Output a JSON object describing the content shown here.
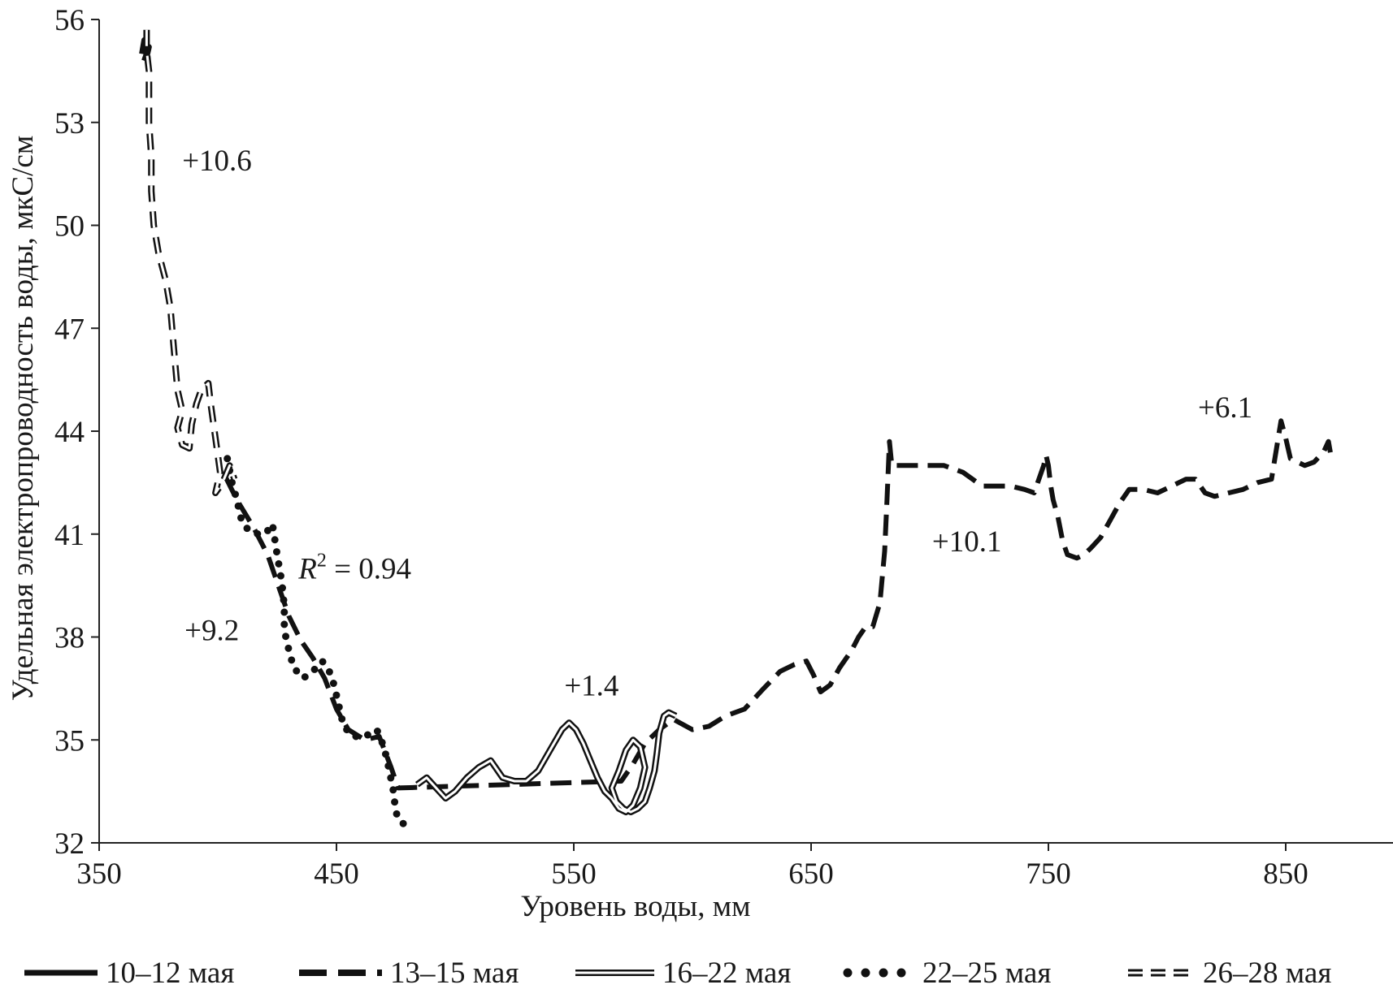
{
  "chart_data": {
    "type": "line",
    "title": "",
    "xlabel": "Уровень воды, мм",
    "ylabel": "Удельная электропроводность воды, мкС/см",
    "xlim": [
      350,
      890
    ],
    "ylim": [
      32,
      56
    ],
    "xticks": [
      350,
      450,
      550,
      650,
      750,
      850
    ],
    "yticks": [
      32,
      35,
      38,
      41,
      44,
      47,
      50,
      53,
      56
    ],
    "grid": false,
    "legend_position": "bottom",
    "series": [
      {
        "name": "10–12 мая",
        "style": "solid-thick",
        "points": [
          [
            368,
            55.0
          ],
          [
            369,
            55.4
          ],
          [
            370,
            54.9
          ],
          [
            371,
            55.2
          ],
          [
            369,
            54.8
          ]
        ]
      },
      {
        "name": "13–15 мая",
        "style": "dashed",
        "points": [
          [
            403,
            42.7
          ],
          [
            408,
            42.0
          ],
          [
            415,
            41.2
          ],
          [
            421,
            40.4
          ],
          [
            426,
            39.4
          ],
          [
            430,
            38.6
          ],
          [
            435,
            37.9
          ],
          [
            440,
            37.4
          ],
          [
            445,
            36.8
          ],
          [
            450,
            35.9
          ],
          [
            455,
            35.3
          ],
          [
            462,
            35.0
          ],
          [
            468,
            35.1
          ],
          [
            473,
            34.2
          ],
          [
            476,
            33.6
          ],
          [
            570,
            33.8
          ],
          [
            575,
            34.3
          ],
          [
            580,
            34.9
          ],
          [
            586,
            35.3
          ],
          [
            592,
            35.6
          ],
          [
            600,
            35.3
          ],
          [
            607,
            35.4
          ],
          [
            614,
            35.7
          ],
          [
            622,
            35.9
          ],
          [
            630,
            36.5
          ],
          [
            637,
            37.0
          ],
          [
            643,
            37.2
          ],
          [
            648,
            37.3
          ],
          [
            651,
            36.9
          ],
          [
            654,
            36.4
          ],
          [
            658,
            36.6
          ],
          [
            662,
            37.1
          ],
          [
            667,
            37.6
          ],
          [
            670,
            38.0
          ],
          [
            673,
            38.3
          ],
          [
            676,
            38.3
          ],
          [
            679,
            39.0
          ],
          [
            681,
            40.5
          ],
          [
            682,
            42.0
          ],
          [
            683,
            43.7
          ],
          [
            684,
            43.0
          ],
          [
            696,
            43.0
          ],
          [
            706,
            43.0
          ],
          [
            714,
            42.8
          ],
          [
            718,
            42.6
          ],
          [
            722,
            42.4
          ],
          [
            728,
            42.4
          ],
          [
            734,
            42.4
          ],
          [
            740,
            42.3
          ],
          [
            744,
            42.2
          ],
          [
            746,
            42.6
          ],
          [
            748,
            43.0
          ],
          [
            749,
            43.3
          ],
          [
            750,
            43.0
          ],
          [
            751,
            42.4
          ],
          [
            752,
            42.0
          ],
          [
            754,
            41.5
          ],
          [
            756,
            40.8
          ],
          [
            758,
            40.4
          ],
          [
            762,
            40.3
          ],
          [
            765,
            40.4
          ],
          [
            768,
            40.6
          ],
          [
            772,
            40.9
          ],
          [
            776,
            41.4
          ],
          [
            780,
            41.9
          ],
          [
            784,
            42.3
          ],
          [
            790,
            42.3
          ],
          [
            796,
            42.2
          ],
          [
            802,
            42.4
          ],
          [
            808,
            42.6
          ],
          [
            812,
            42.6
          ],
          [
            816,
            42.2
          ],
          [
            820,
            42.1
          ],
          [
            826,
            42.2
          ],
          [
            832,
            42.3
          ],
          [
            838,
            42.5
          ],
          [
            844,
            42.6
          ],
          [
            848,
            44.3
          ],
          [
            850,
            43.8
          ],
          [
            852,
            43.2
          ],
          [
            858,
            43.0
          ],
          [
            862,
            43.1
          ],
          [
            866,
            43.4
          ],
          [
            868,
            43.7
          ],
          [
            869,
            43.3
          ]
        ]
      },
      {
        "name": "16–22 мая",
        "style": "double-line",
        "points": [
          [
            484,
            33.7
          ],
          [
            488,
            33.9
          ],
          [
            492,
            33.6
          ],
          [
            496,
            33.3
          ],
          [
            500,
            33.5
          ],
          [
            505,
            33.9
          ],
          [
            510,
            34.2
          ],
          [
            515,
            34.4
          ],
          [
            520,
            33.9
          ],
          [
            525,
            33.8
          ],
          [
            530,
            33.8
          ],
          [
            535,
            34.1
          ],
          [
            540,
            34.7
          ],
          [
            545,
            35.3
          ],
          [
            548,
            35.5
          ],
          [
            551,
            35.3
          ],
          [
            554,
            34.9
          ],
          [
            557,
            34.4
          ],
          [
            560,
            33.9
          ],
          [
            563,
            33.5
          ],
          [
            566,
            33.3
          ],
          [
            569,
            33.0
          ],
          [
            572,
            32.9
          ],
          [
            575,
            33.1
          ],
          [
            578,
            33.6
          ],
          [
            580,
            34.2
          ],
          [
            578,
            34.8
          ],
          [
            575,
            35.0
          ],
          [
            572,
            34.7
          ],
          [
            569,
            34.1
          ],
          [
            566,
            33.6
          ],
          [
            568,
            33.2
          ],
          [
            571,
            33.0
          ],
          [
            574,
            32.9
          ],
          [
            577,
            33.0
          ],
          [
            580,
            33.2
          ],
          [
            582,
            33.6
          ],
          [
            584,
            34.1
          ],
          [
            585,
            34.6
          ],
          [
            586,
            35.2
          ],
          [
            588,
            35.7
          ],
          [
            590,
            35.8
          ],
          [
            593,
            35.7
          ]
        ]
      },
      {
        "name": "22–25 мая",
        "style": "dotted",
        "points": [
          [
            404,
            43.2
          ],
          [
            406,
            42.5
          ],
          [
            408,
            42.0
          ],
          [
            410,
            41.4
          ],
          [
            413,
            41.1
          ],
          [
            417,
            41.0
          ],
          [
            420,
            41.0
          ],
          [
            423,
            41.3
          ],
          [
            425,
            40.4
          ],
          [
            427,
            39.6
          ],
          [
            428,
            38.9
          ],
          [
            428,
            38.2
          ],
          [
            430,
            37.6
          ],
          [
            432,
            37.1
          ],
          [
            436,
            36.8
          ],
          [
            440,
            37.0
          ],
          [
            444,
            37.3
          ],
          [
            447,
            37.0
          ],
          [
            449,
            36.6
          ],
          [
            451,
            36.0
          ],
          [
            453,
            35.4
          ],
          [
            457,
            35.1
          ],
          [
            462,
            35.1
          ],
          [
            467,
            35.3
          ],
          [
            470,
            34.8
          ],
          [
            472,
            34.2
          ],
          [
            474,
            33.5
          ],
          [
            475,
            32.9
          ],
          [
            477,
            32.6
          ],
          [
            480,
            32.5
          ],
          [
            483,
            32.5
          ]
        ]
      },
      {
        "name": "26–28 мая",
        "style": "dash-double",
        "points": [
          [
            370,
            55.7
          ],
          [
            370,
            55.1
          ],
          [
            371,
            54.5
          ],
          [
            371,
            53.8
          ],
          [
            371,
            53.0
          ],
          [
            372,
            52.0
          ],
          [
            372,
            51.0
          ],
          [
            373,
            50.0
          ],
          [
            375,
            49.2
          ],
          [
            378,
            48.4
          ],
          [
            380,
            47.6
          ],
          [
            381,
            46.8
          ],
          [
            382,
            46.0
          ],
          [
            383,
            45.2
          ],
          [
            385,
            44.6
          ],
          [
            383,
            44.1
          ],
          [
            385,
            43.6
          ],
          [
            388,
            43.5
          ],
          [
            389,
            44.2
          ],
          [
            391,
            44.8
          ],
          [
            393,
            45.2
          ],
          [
            396,
            45.4
          ],
          [
            397,
            44.8
          ],
          [
            399,
            43.8
          ],
          [
            401,
            42.8
          ],
          [
            399,
            42.2
          ],
          [
            402,
            42.5
          ],
          [
            405,
            43.0
          ],
          [
            407,
            42.6
          ]
        ]
      }
    ],
    "annotations": [
      {
        "text": "+10.6",
        "x": 385,
        "y": 51.6
      },
      {
        "text": "+9.2",
        "x": 386,
        "y": 37.9
      },
      {
        "text": "+1.4",
        "x": 546,
        "y": 36.3
      },
      {
        "text": "+10.1",
        "x": 701,
        "y": 40.5
      },
      {
        "text": "+6.1",
        "x": 813,
        "y": 44.4
      }
    ],
    "r_squared": {
      "symbol": "R",
      "superscript": "2",
      "text": " = 0.94",
      "x": 434,
      "y": 39.7
    }
  }
}
